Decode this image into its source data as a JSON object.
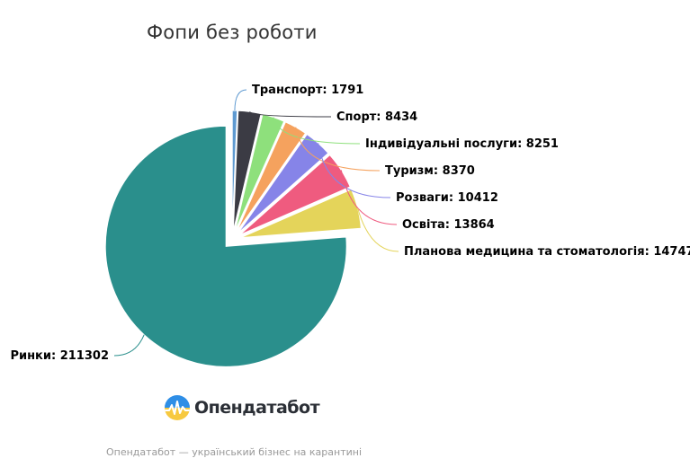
{
  "chart_data": {
    "type": "pie",
    "title": "Фопи без роботи",
    "slices": [
      {
        "name": "Транспорт",
        "value": 1791,
        "color": "#5f9ad1"
      },
      {
        "name": "Спорт",
        "value": 8434,
        "color": "#3b3b44"
      },
      {
        "name": "Індивідуальні послуги",
        "value": 8251,
        "color": "#8ee07c"
      },
      {
        "name": "Туризм",
        "value": 8370,
        "color": "#f5a25e"
      },
      {
        "name": "Розваги",
        "value": 10412,
        "color": "#8684e8"
      },
      {
        "name": "Освіта",
        "value": 13864,
        "color": "#ef5b7f"
      },
      {
        "name": "Планова медицина та стоматологія",
        "value": 14747,
        "color": "#e4d45a"
      },
      {
        "name": "Ринки",
        "value": 211302,
        "color": "#2a8f8c"
      }
    ]
  },
  "logo": {
    "name": "Опендатабот"
  },
  "footer": {
    "text": "Опендатабот — український бізнес на карантині"
  }
}
